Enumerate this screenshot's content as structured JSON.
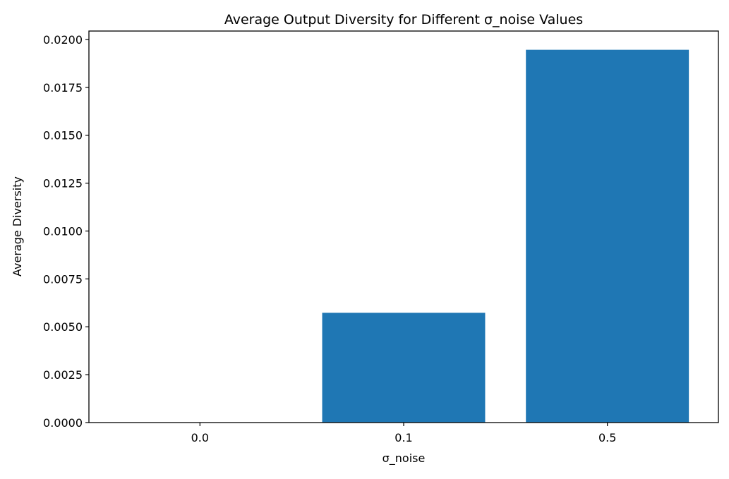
{
  "chart_data": {
    "type": "bar",
    "title": "Average Output Diversity for Different σ_noise Values",
    "xlabel": "σ_noise",
    "ylabel": "Average Diversity",
    "categories": [
      "0.0",
      "0.1",
      "0.5"
    ],
    "values": [
      0.0,
      0.00573,
      0.01946
    ],
    "ylim": [
      0,
      0.02044
    ],
    "yticks": [
      0.0,
      0.0025,
      0.005,
      0.0075,
      0.01,
      0.0125,
      0.015,
      0.0175,
      0.02
    ],
    "ytick_labels": [
      "0.0000",
      "0.0025",
      "0.0050",
      "0.0075",
      "0.0100",
      "0.0125",
      "0.0150",
      "0.0175",
      "0.0200"
    ],
    "bar_color": "#1f77b4",
    "grid": false,
    "legend": "none"
  }
}
